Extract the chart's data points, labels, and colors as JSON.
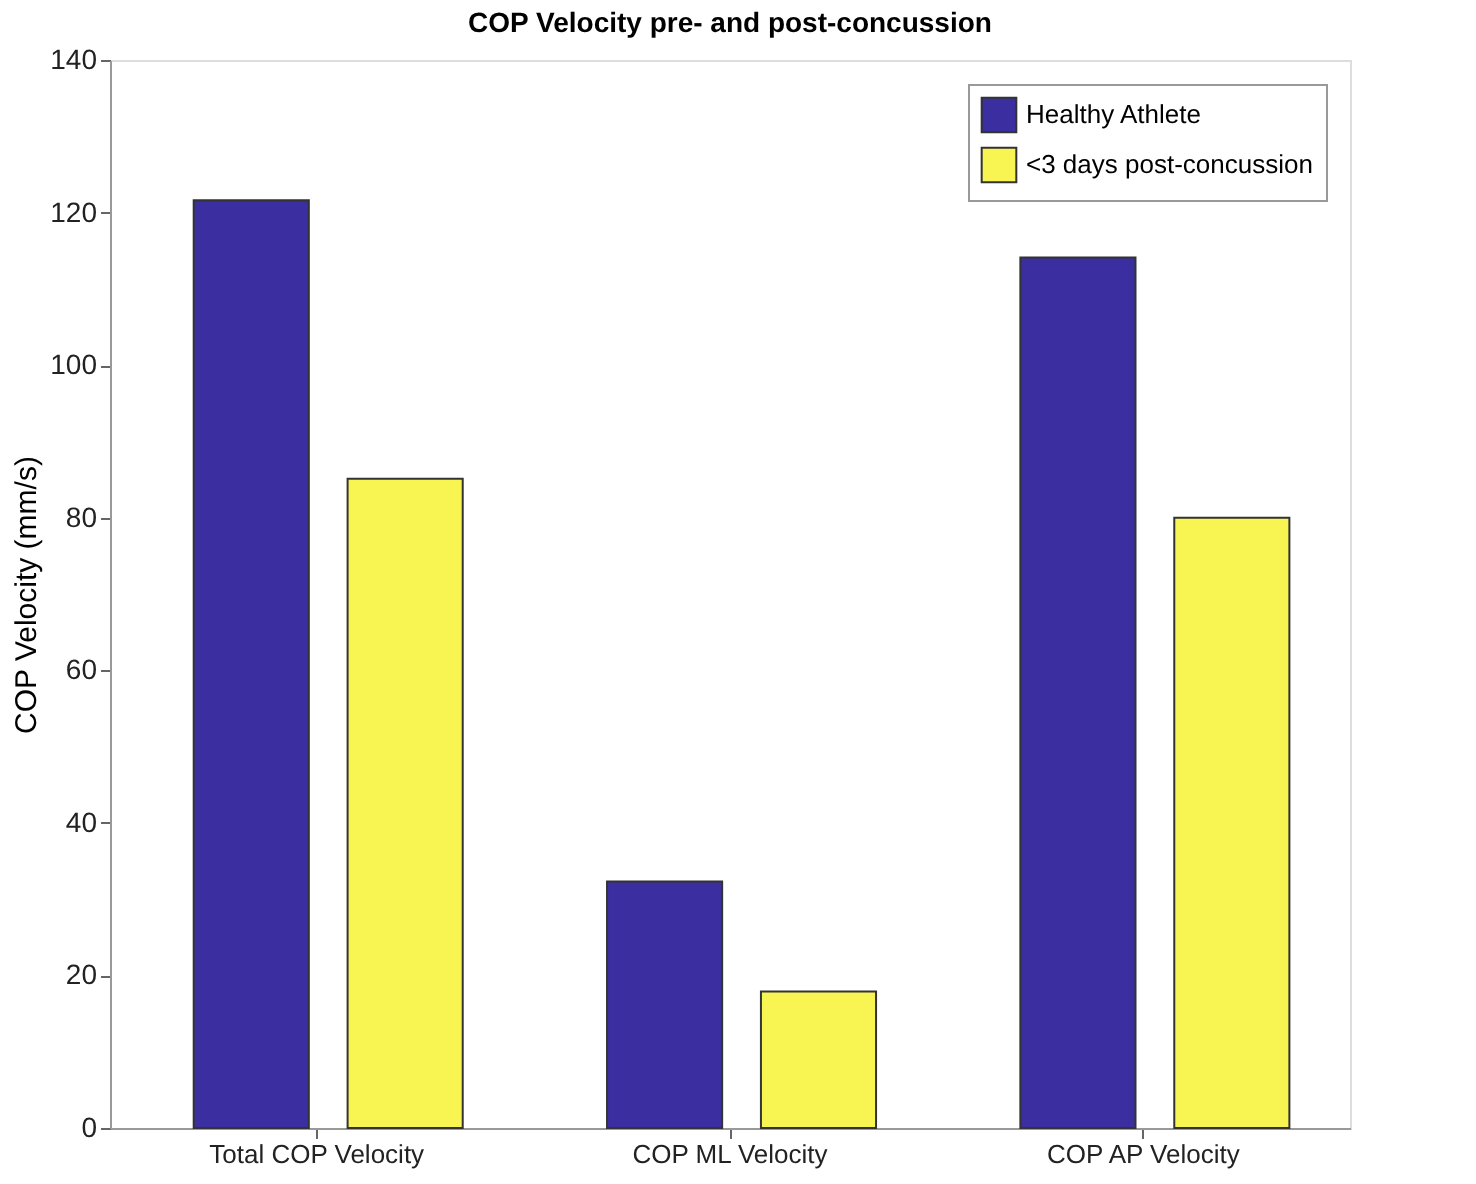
{
  "chart_data": {
    "type": "bar",
    "title": "COP Velocity pre- and post-concussion",
    "ylabel": "COP Velocity (mm/s)",
    "categories": [
      "Total COP Velocity",
      "COP ML Velocity",
      "COP AP Velocity"
    ],
    "series": [
      {
        "name": "Healthy Athlete",
        "color": "#3a2ea0",
        "values": [
          121.6,
          32.3,
          114.1
        ]
      },
      {
        "name": "<3 days post-concussion",
        "color": "#f8f552",
        "values": [
          85.1,
          17.9,
          80
        ]
      }
    ],
    "ylim": [
      0,
      140
    ],
    "yticks": [
      0,
      20,
      40,
      60,
      80,
      100,
      120,
      140
    ],
    "grid": false,
    "legend": "top right"
  }
}
